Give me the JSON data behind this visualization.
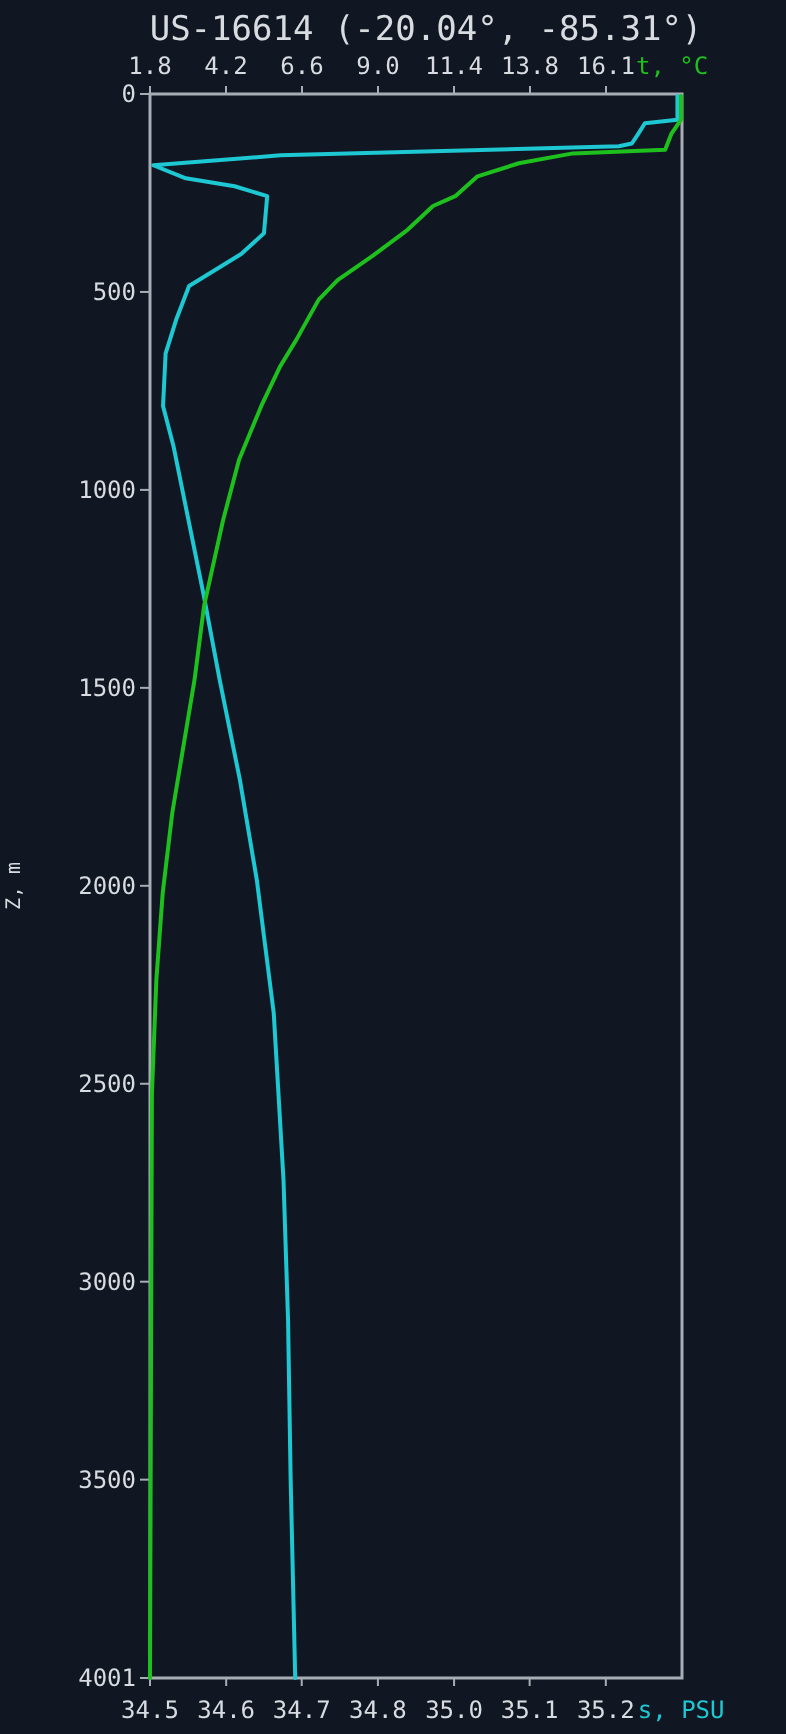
{
  "chart_data": {
    "type": "line",
    "title": "US-16614 (-20.04°, -85.31°)",
    "xlabel": "s, PSU",
    "x2label": "t, °C",
    "ylabel": "Z, m",
    "xlim": [
      34.5,
      35.317
    ],
    "xticks": [
      {
        "value": 34.5,
        "label": "34.5"
      },
      {
        "value": 34.617,
        "label": "34.6"
      },
      {
        "value": 34.733,
        "label": "34.7"
      },
      {
        "value": 34.85,
        "label": "34.8"
      },
      {
        "value": 34.967,
        "label": "35.0"
      },
      {
        "value": 35.083,
        "label": "35.1"
      },
      {
        "value": 35.2,
        "label": "35.2"
      }
    ],
    "x2lim": [
      1.8,
      18.53
    ],
    "x2ticks": [
      {
        "value": 1.8,
        "label": "1.8"
      },
      {
        "value": 4.19,
        "label": "4.2"
      },
      {
        "value": 6.58,
        "label": "6.6"
      },
      {
        "value": 8.97,
        "label": "9.0"
      },
      {
        "value": 11.36,
        "label": "11.4"
      },
      {
        "value": 13.75,
        "label": "13.8"
      },
      {
        "value": 16.14,
        "label": "16.1"
      }
    ],
    "ylim": [
      4001,
      0
    ],
    "yticks": [
      0,
      500,
      1000,
      1500,
      2000,
      2500,
      3000,
      3500,
      4001
    ],
    "grid": false,
    "marker": "none",
    "line_style": "solid",
    "series": [
      {
        "color": "#1ec8d2",
        "x": [
          35.31,
          35.31,
          35.26,
          35.25,
          35.24,
          35.22,
          34.7,
          34.505,
          34.555,
          34.63,
          34.68,
          34.675,
          34.64,
          34.56,
          34.54,
          34.524,
          34.52,
          34.536,
          34.582,
          34.607,
          34.638,
          34.664,
          34.69,
          34.705,
          34.712,
          34.716,
          34.723
        ],
        "values": [
          5,
          65,
          74,
          100,
          125,
          132,
          155,
          180,
          213,
          233,
          258,
          352,
          404,
          485,
          571,
          655,
          788,
          889,
          1262,
          1480,
          1732,
          1985,
          2321,
          2742,
          3096,
          3500,
          4001
        ]
      },
      {
        "color": "#1ec01e",
        "axis": "x2",
        "x": [
          18.5,
          18.5,
          18.2,
          18.0,
          15.1,
          13.4,
          12.1,
          11.4,
          10.7,
          9.9,
          8.8,
          7.7,
          7.1,
          6.4,
          5.9,
          5.3,
          4.6,
          4.1,
          3.5,
          3.2,
          2.5,
          2.2,
          2.0,
          1.86,
          1.8
        ],
        "values": [
          5,
          65,
          100,
          141,
          150,
          175,
          208,
          258,
          283,
          343,
          409,
          470,
          520,
          621,
          687,
          788,
          924,
          1076,
          1293,
          1480,
          1816,
          2018,
          2237,
          2525,
          4001
        ]
      }
    ]
  }
}
